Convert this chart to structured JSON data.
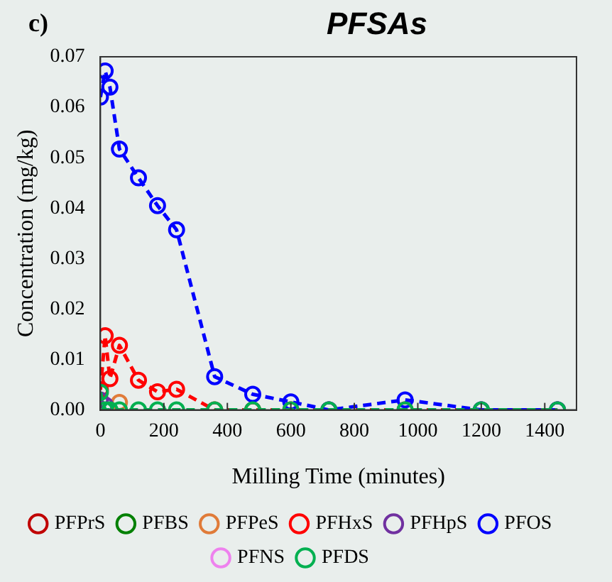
{
  "chart_data": {
    "type": "line",
    "title": "PFSAs",
    "xlabel": "Milling Time (minutes)",
    "ylabel": "Concentration (mg/kg)",
    "annotations": [
      "c)"
    ],
    "x": [
      0,
      15,
      30,
      60,
      120,
      180,
      240,
      360,
      480,
      600,
      720,
      960,
      1200,
      1440
    ],
    "xlim": [
      0,
      1500
    ],
    "xticks": [
      0,
      200,
      400,
      600,
      800,
      1000,
      1200,
      1400
    ],
    "ylim": [
      0,
      0.07
    ],
    "yticks": [
      {
        "value": 0,
        "label": "0.00"
      },
      {
        "value": 0.01,
        "label": "0.01"
      },
      {
        "value": 0.02,
        "label": "0.02"
      },
      {
        "value": 0.03,
        "label": "0.03"
      },
      {
        "value": 0.04,
        "label": "0.04"
      },
      {
        "value": 0.05,
        "label": "0.05"
      },
      {
        "value": 0.06,
        "label": "0.06"
      },
      {
        "value": 0.07,
        "label": "0.07"
      }
    ],
    "series": [
      {
        "name": "PFPrS",
        "color": "#c00000",
        "values": [
          null,
          null,
          null,
          null,
          null,
          null,
          null,
          null,
          null,
          null,
          null,
          null,
          null,
          null
        ]
      },
      {
        "name": "PFBS",
        "color": "#008000",
        "values": [
          null,
          null,
          null,
          null,
          null,
          null,
          null,
          null,
          null,
          null,
          null,
          null,
          null,
          null
        ]
      },
      {
        "name": "PFPeS",
        "color": "#e07b39",
        "values": [
          null,
          null,
          null,
          0.0015,
          null,
          null,
          null,
          null,
          null,
          null,
          null,
          null,
          null,
          null
        ]
      },
      {
        "name": "PFHxS",
        "color": "#ff0000",
        "values": [
          0.004,
          0.0147,
          0.0062,
          0.0128,
          0.0059,
          0.0036,
          0.0041,
          0,
          0,
          0,
          0,
          0,
          0,
          0
        ]
      },
      {
        "name": "PFHpS",
        "color": "#7030a0",
        "values": [
          0.002,
          0.001,
          null,
          null,
          null,
          null,
          null,
          null,
          null,
          null,
          null,
          null,
          null,
          null
        ]
      },
      {
        "name": "PFOS",
        "color": "#0000ff",
        "values": [
          0.062,
          0.0672,
          0.064,
          0.0517,
          0.046,
          0.0405,
          0.0357,
          0.0066,
          0.0031,
          0.0016,
          0,
          0.002,
          0,
          0
        ]
      },
      {
        "name": "PFNS",
        "color": "#ee82ee",
        "values": [
          null,
          null,
          null,
          null,
          null,
          null,
          null,
          null,
          null,
          null,
          null,
          null,
          null,
          null
        ]
      },
      {
        "name": "PFDS",
        "color": "#00b050",
        "values": [
          0.0035,
          0,
          0,
          0,
          0,
          0,
          0,
          0,
          0,
          0,
          0,
          0,
          0,
          0
        ]
      }
    ],
    "legend": "bottom",
    "marker": "circle",
    "line_style": "dashed",
    "grid": false
  }
}
